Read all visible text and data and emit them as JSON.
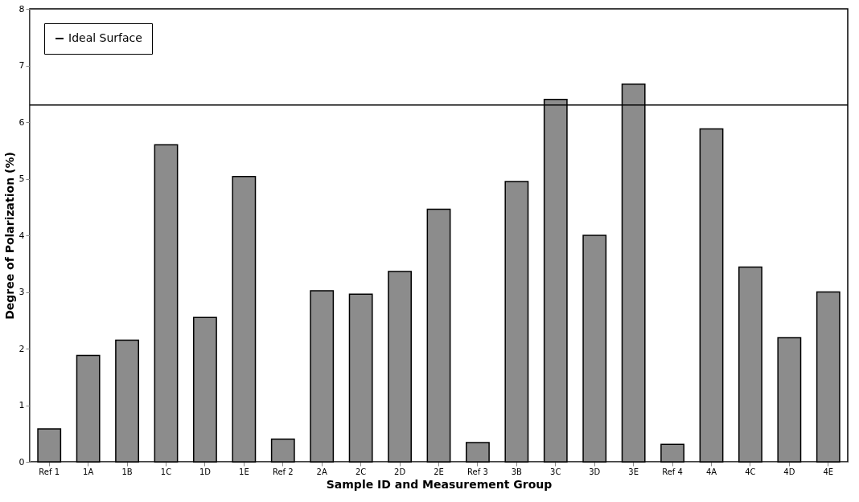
{
  "chart_data": {
    "type": "bar",
    "xlabel": "Sample ID and Measurement Group",
    "ylabel": "Degree of Polarization (%)",
    "categories": [
      "Ref 1",
      "1A",
      "1B",
      "1C",
      "1D",
      "1E",
      "Ref 2",
      "2A",
      "2C",
      "2D",
      "2E",
      "Ref 3",
      "3B",
      "3C",
      "3D",
      "3E",
      "Ref 4",
      "4A",
      "4C",
      "4D",
      "4E"
    ],
    "series": [
      {
        "color": "#8c8c8c",
        "values": [
          0.58,
          1.88,
          2.15,
          5.6,
          2.55,
          5.04,
          0.4,
          3.02,
          2.96,
          3.36,
          4.46,
          0.34,
          4.95,
          6.4,
          4.0,
          6.67,
          0.31,
          5.88,
          3.44,
          2.19,
          3.0
        ]
      }
    ],
    "ylim": [
      0,
      8
    ],
    "yticks": [
      0,
      1,
      2,
      3,
      4,
      5,
      6,
      7,
      8
    ],
    "ref_lines": [
      {
        "axis": "y",
        "value": 6.3,
        "label": "Ideal Surface",
        "color": "#000000",
        "line_style": "solid"
      }
    ],
    "grid": false,
    "legend": "top left"
  }
}
